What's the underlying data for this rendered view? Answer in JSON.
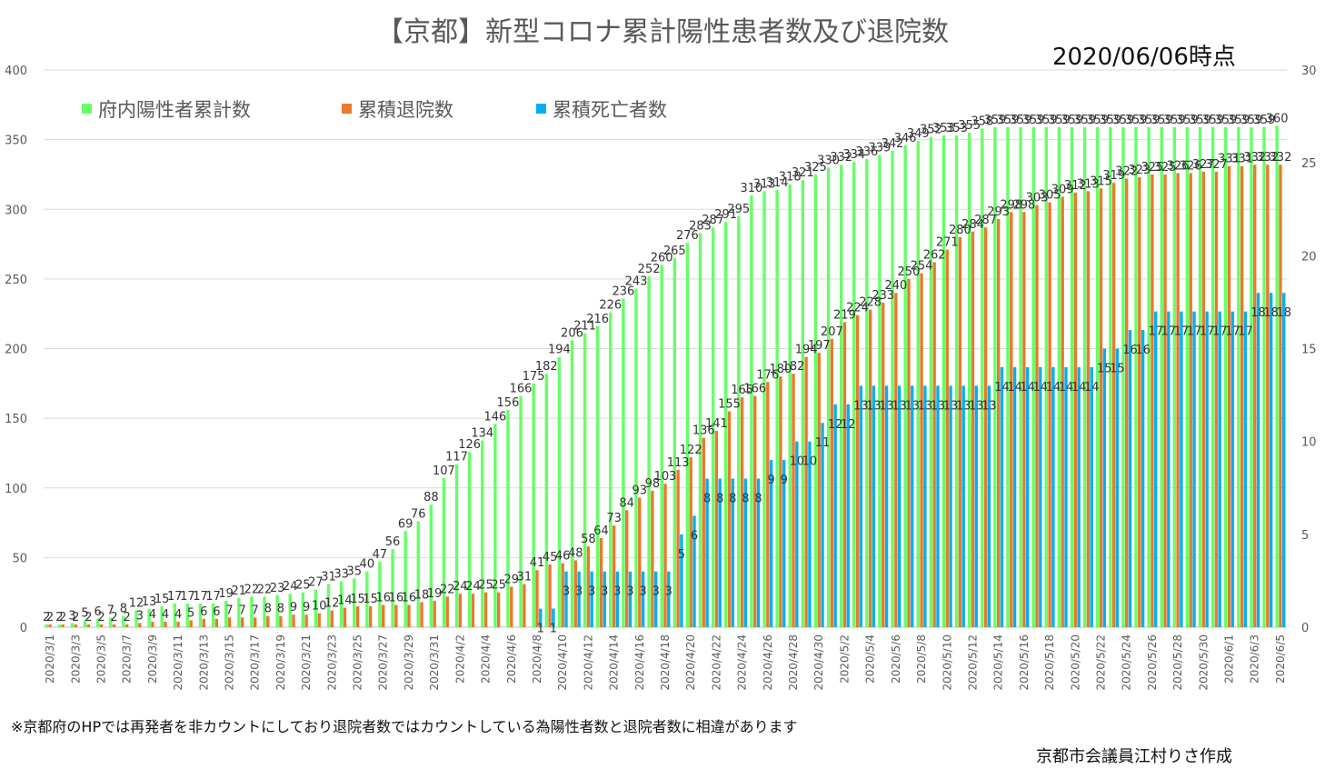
{
  "title": "【京都】新型コロナ累計陽性患者数及び退院数",
  "as_of": "2020/06/06時点",
  "note": "※京都府のHPでは再発者を非カウントにしており退院者数ではカウントしている為陽性者数と退院者数に相違があります",
  "author": "京都市会議員江村りさ作成",
  "chart_data": {
    "type": "bar",
    "title": "【京都】新型コロナ累計陽性患者数及び退院数",
    "xlabel": "",
    "ylabel": "",
    "ylim": [
      0,
      400
    ],
    "yticks": [
      0,
      50,
      100,
      150,
      200,
      250,
      300,
      350,
      400
    ],
    "y2lim": [
      0,
      30
    ],
    "y2ticks": [
      0,
      5,
      10,
      15,
      20,
      25,
      30
    ],
    "grid": true,
    "legend_position": "top-left",
    "categories": [
      "2020/3/1",
      "2020/3/2",
      "2020/3/3",
      "2020/3/4",
      "2020/3/5",
      "2020/3/6",
      "2020/3/7",
      "2020/3/8",
      "2020/3/9",
      "2020/3/10",
      "2020/3/11",
      "2020/3/12",
      "2020/3/13",
      "2020/3/14",
      "2020/3/15",
      "2020/3/16",
      "2020/3/17",
      "2020/3/18",
      "2020/3/19",
      "2020/3/20",
      "2020/3/21",
      "2020/3/22",
      "2020/3/23",
      "2020/3/24",
      "2020/3/25",
      "2020/3/26",
      "2020/3/27",
      "2020/3/28",
      "2020/3/29",
      "2020/3/30",
      "2020/3/31",
      "2020/4/1",
      "2020/4/2",
      "2020/4/3",
      "2020/4/4",
      "2020/4/5",
      "2020/4/6",
      "2020/4/7",
      "2020/4/8",
      "2020/4/9",
      "2020/4/10",
      "2020/4/11",
      "2020/4/12",
      "2020/4/13",
      "2020/4/14",
      "2020/4/15",
      "2020/4/16",
      "2020/4/17",
      "2020/4/18",
      "2020/4/19",
      "2020/4/20",
      "2020/4/21",
      "2020/4/22",
      "2020/4/23",
      "2020/4/24",
      "2020/4/25",
      "2020/4/26",
      "2020/4/27",
      "2020/4/28",
      "2020/4/29",
      "2020/4/30",
      "2020/5/1",
      "2020/5/2",
      "2020/5/3",
      "2020/5/4",
      "2020/5/5",
      "2020/5/6",
      "2020/5/7",
      "2020/5/8",
      "2020/5/9",
      "2020/5/10",
      "2020/5/11",
      "2020/5/12",
      "2020/5/13",
      "2020/5/14",
      "2020/5/15",
      "2020/5/16",
      "2020/5/17",
      "2020/5/18",
      "2020/5/19",
      "2020/5/20",
      "2020/5/21",
      "2020/5/22",
      "2020/5/23",
      "2020/5/24",
      "2020/5/25",
      "2020/5/26",
      "2020/5/27",
      "2020/5/28",
      "2020/5/29",
      "2020/5/30",
      "2020/5/31",
      "2020/6/1",
      "2020/6/2",
      "2020/6/3",
      "2020/6/4",
      "2020/6/5"
    ],
    "series": [
      {
        "name": "府内陽性者累計数",
        "color": "#66ff66",
        "axis": "left",
        "values": [
          2,
          2,
          3,
          5,
          6,
          7,
          8,
          12,
          13,
          15,
          17,
          17,
          17,
          17,
          19,
          21,
          22,
          22,
          23,
          24,
          25,
          27,
          31,
          33,
          35,
          40,
          47,
          56,
          69,
          76,
          88,
          107,
          117,
          126,
          134,
          146,
          156,
          166,
          175,
          182,
          194,
          206,
          211,
          216,
          226,
          236,
          243,
          252,
          260,
          265,
          276,
          283,
          287,
          291,
          295,
          310,
          313,
          314,
          318,
          321,
          325,
          330,
          332,
          334,
          336,
          339,
          342,
          346,
          349,
          352,
          353,
          353,
          355,
          358,
          359,
          359,
          359,
          359,
          359,
          359,
          359,
          359,
          359,
          359,
          359,
          359,
          359,
          359,
          359,
          359,
          359,
          359,
          359,
          359,
          359,
          359,
          360
        ]
      },
      {
        "name": "累積退院数",
        "color": "#e87a2c",
        "axis": "left",
        "values": [
          2,
          2,
          2,
          2,
          2,
          2,
          2,
          3,
          4,
          4,
          4,
          5,
          6,
          6,
          7,
          7,
          7,
          8,
          8,
          9,
          9,
          10,
          12,
          14,
          15,
          15,
          16,
          16,
          16,
          18,
          19,
          22,
          24,
          24,
          25,
          25,
          29,
          31,
          41,
          45,
          46,
          48,
          58,
          64,
          73,
          84,
          93,
          98,
          103,
          113,
          122,
          136,
          141,
          155,
          165,
          166,
          176,
          180,
          182,
          194,
          197,
          207,
          219,
          224,
          228,
          233,
          240,
          250,
          254,
          262,
          271,
          280,
          284,
          287,
          293,
          298,
          298,
          303,
          305,
          309,
          312,
          313,
          315,
          319,
          322,
          323,
          325,
          325,
          326,
          326,
          327,
          327,
          331,
          331,
          332,
          332,
          332
        ]
      },
      {
        "name": "累積死亡者数",
        "color": "#00b0f0",
        "axis": "right",
        "values": [
          0,
          0,
          0,
          0,
          0,
          0,
          0,
          0,
          0,
          0,
          0,
          0,
          0,
          0,
          0,
          0,
          0,
          0,
          0,
          0,
          0,
          0,
          0,
          0,
          0,
          0,
          0,
          0,
          0,
          0,
          0,
          0,
          0,
          0,
          0,
          0,
          0,
          0,
          1,
          1,
          3,
          3,
          3,
          3,
          3,
          3,
          3,
          3,
          3,
          5,
          6,
          8,
          8,
          8,
          8,
          8,
          9,
          9,
          10,
          10,
          11,
          12,
          12,
          13,
          13,
          13,
          13,
          13,
          13,
          13,
          13,
          13,
          13,
          13,
          14,
          14,
          14,
          14,
          14,
          14,
          14,
          14,
          15,
          15,
          16,
          16,
          17,
          17,
          17,
          17,
          17,
          17,
          17,
          17,
          18,
          18,
          18
        ]
      }
    ]
  }
}
